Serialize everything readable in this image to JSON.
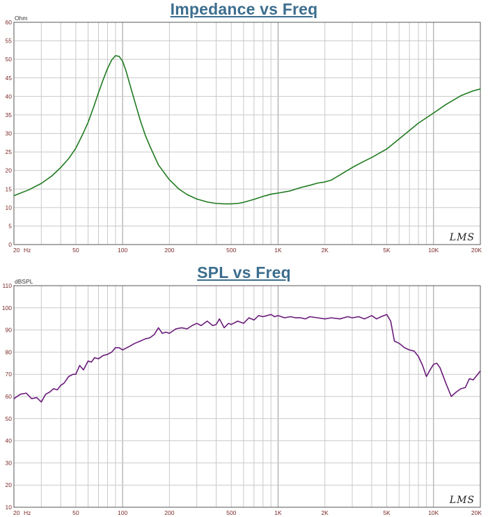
{
  "chart_data": [
    {
      "type": "line",
      "title": "Impedance vs Freq",
      "ylabel": "Ohm",
      "xlabel": "",
      "x_scale": "log",
      "xlim": [
        20,
        20000
      ],
      "ylim": [
        0,
        60
      ],
      "y_ticks": [
        0,
        5,
        10,
        15,
        20,
        25,
        30,
        35,
        40,
        45,
        50,
        55,
        60
      ],
      "x_tick_labels": [
        {
          "value": 20,
          "label": "20"
        },
        {
          "value": 50,
          "label": "50"
        },
        {
          "value": 100,
          "label": "100"
        },
        {
          "value": 200,
          "label": "200"
        },
        {
          "value": 500,
          "label": "500"
        },
        {
          "value": 1000,
          "label": "1K"
        },
        {
          "value": 2000,
          "label": "2K"
        },
        {
          "value": 5000,
          "label": "5K"
        },
        {
          "value": 10000,
          "label": "10K"
        },
        {
          "value": 20000,
          "label": "20K"
        }
      ],
      "x_unit_label": "Hz",
      "grid": true,
      "watermark": "LMS",
      "series": [
        {
          "color": "#1f7a1f",
          "x": [
            20,
            25,
            30,
            35,
            40,
            45,
            50,
            55,
            60,
            65,
            70,
            75,
            80,
            85,
            90,
            95,
            100,
            105,
            110,
            120,
            130,
            140,
            150,
            170,
            200,
            230,
            260,
            300,
            350,
            400,
            450,
            500,
            550,
            600,
            700,
            800,
            900,
            1000,
            1200,
            1400,
            1600,
            1800,
            2000,
            2200,
            2500,
            3000,
            3500,
            4000,
            5000,
            6000,
            7000,
            8000,
            10000,
            12000,
            15000,
            18000,
            20000
          ],
          "values": [
            13.2,
            14.8,
            16.5,
            18.5,
            20.8,
            23.2,
            26,
            29.5,
            33,
            37,
            41,
            44.5,
            47.5,
            49.8,
            51,
            50.8,
            49.5,
            47,
            44,
            38.5,
            33.5,
            29.5,
            26.5,
            21.5,
            17.5,
            15,
            13.5,
            12.3,
            11.5,
            11.1,
            11,
            11,
            11.1,
            11.4,
            12.2,
            13,
            13.6,
            13.9,
            14.5,
            15.4,
            16,
            16.6,
            16.9,
            17.4,
            18.8,
            20.8,
            22.3,
            23.5,
            25.8,
            28.5,
            30.8,
            32.8,
            35.5,
            37.8,
            40.2,
            41.5,
            42
          ]
        }
      ]
    },
    {
      "type": "line",
      "title": "SPL vs Freq",
      "ylabel": "dBSPL",
      "xlabel": "",
      "x_scale": "log",
      "xlim": [
        20,
        20000
      ],
      "ylim": [
        10,
        110
      ],
      "y_ticks": [
        10,
        20,
        30,
        40,
        50,
        60,
        70,
        80,
        90,
        100,
        110
      ],
      "x_tick_labels": [
        {
          "value": 20,
          "label": "20"
        },
        {
          "value": 50,
          "label": "50"
        },
        {
          "value": 100,
          "label": "100"
        },
        {
          "value": 200,
          "label": "200"
        },
        {
          "value": 500,
          "label": "500"
        },
        {
          "value": 1000,
          "label": "1K"
        },
        {
          "value": 2000,
          "label": "2K"
        },
        {
          "value": 5000,
          "label": "5K"
        },
        {
          "value": 10000,
          "label": "10K"
        },
        {
          "value": 20000,
          "label": "20K"
        }
      ],
      "x_unit_label": "Hz",
      "grid": true,
      "watermark": "LMS",
      "series": [
        {
          "color": "#6a1b7a",
          "x": [
            20,
            22,
            24,
            26,
            28,
            30,
            32,
            34,
            36,
            38,
            40,
            42,
            45,
            48,
            50,
            53,
            56,
            60,
            63,
            66,
            70,
            75,
            80,
            85,
            90,
            95,
            100,
            110,
            120,
            130,
            140,
            150,
            160,
            170,
            180,
            190,
            200,
            220,
            240,
            260,
            280,
            300,
            320,
            350,
            380,
            400,
            420,
            450,
            480,
            500,
            550,
            600,
            650,
            700,
            750,
            800,
            850,
            900,
            950,
            1000,
            1100,
            1200,
            1300,
            1400,
            1500,
            1600,
            1800,
            2000,
            2200,
            2500,
            2800,
            3000,
            3300,
            3600,
            4000,
            4300,
            4600,
            5000,
            5300,
            5600,
            6000,
            6500,
            7000,
            7500,
            8000,
            8500,
            9000,
            9500,
            10000,
            10500,
            11000,
            12000,
            13000,
            14000,
            15000,
            16000,
            17000,
            18000,
            19000,
            20000
          ],
          "values": [
            59,
            61,
            61.5,
            59,
            59.5,
            57.5,
            61,
            62,
            63.5,
            63,
            65,
            66,
            69,
            70,
            70,
            74,
            72,
            76,
            75.5,
            77.5,
            77,
            78.5,
            79,
            80,
            82,
            82,
            81,
            82.5,
            84,
            85,
            86,
            86.5,
            88,
            91,
            88.5,
            89,
            88.5,
            90.5,
            91,
            90.5,
            92,
            93,
            92,
            94,
            92,
            92.5,
            95,
            91,
            93,
            92.5,
            94,
            93,
            95.5,
            94.5,
            96.5,
            96,
            96.5,
            97,
            96,
            96.5,
            95.5,
            96,
            95.5,
            95.5,
            95,
            96,
            95.5,
            95,
            95.5,
            95,
            96,
            95.5,
            96,
            95,
            96.5,
            95,
            96,
            97,
            94,
            85,
            84,
            82,
            81,
            80.5,
            78,
            74,
            69,
            72,
            74.5,
            75,
            73,
            66,
            60,
            62,
            63.5,
            64,
            68,
            67.5,
            69.5,
            71.5
          ]
        }
      ]
    }
  ]
}
